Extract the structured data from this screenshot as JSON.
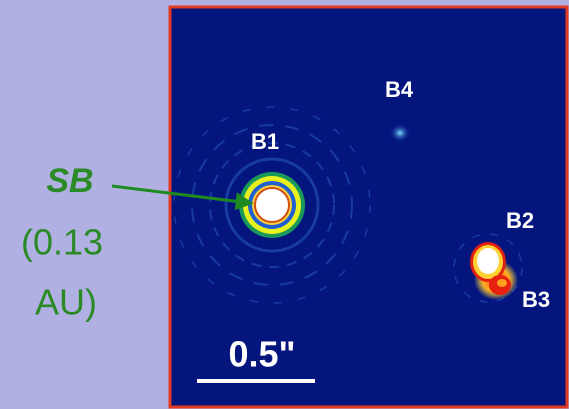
{
  "annotation": {
    "name": "SB",
    "detail_lines": [
      "(0.13",
      "AU)"
    ]
  },
  "image": {
    "labels": [
      "B1",
      "B2",
      "B3",
      "B4"
    ],
    "scale_bar": "0.5\""
  }
}
